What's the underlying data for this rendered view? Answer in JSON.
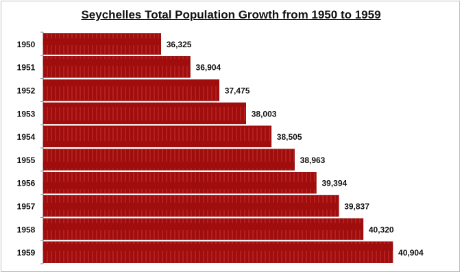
{
  "chart_data": {
    "type": "bar",
    "orientation": "horizontal",
    "title": "Seychelles Total Population Growth from 1950 to 1959",
    "categories": [
      "1950",
      "1951",
      "1952",
      "1953",
      "1954",
      "1955",
      "1956",
      "1957",
      "1958",
      "1959"
    ],
    "values": [
      36325,
      36904,
      37475,
      38003,
      38505,
      38963,
      39394,
      39837,
      40320,
      40904
    ],
    "data_labels": [
      "36,325",
      "36,904",
      "37,475",
      "38,003",
      "38,505",
      "38,963",
      "39,394",
      "39,837",
      "40,320",
      "40,904"
    ],
    "xlabel": "",
    "ylabel": "",
    "xlim": [
      34000,
      42000
    ],
    "grid": false,
    "legend": "none",
    "bar_color": "#a00d0d"
  }
}
